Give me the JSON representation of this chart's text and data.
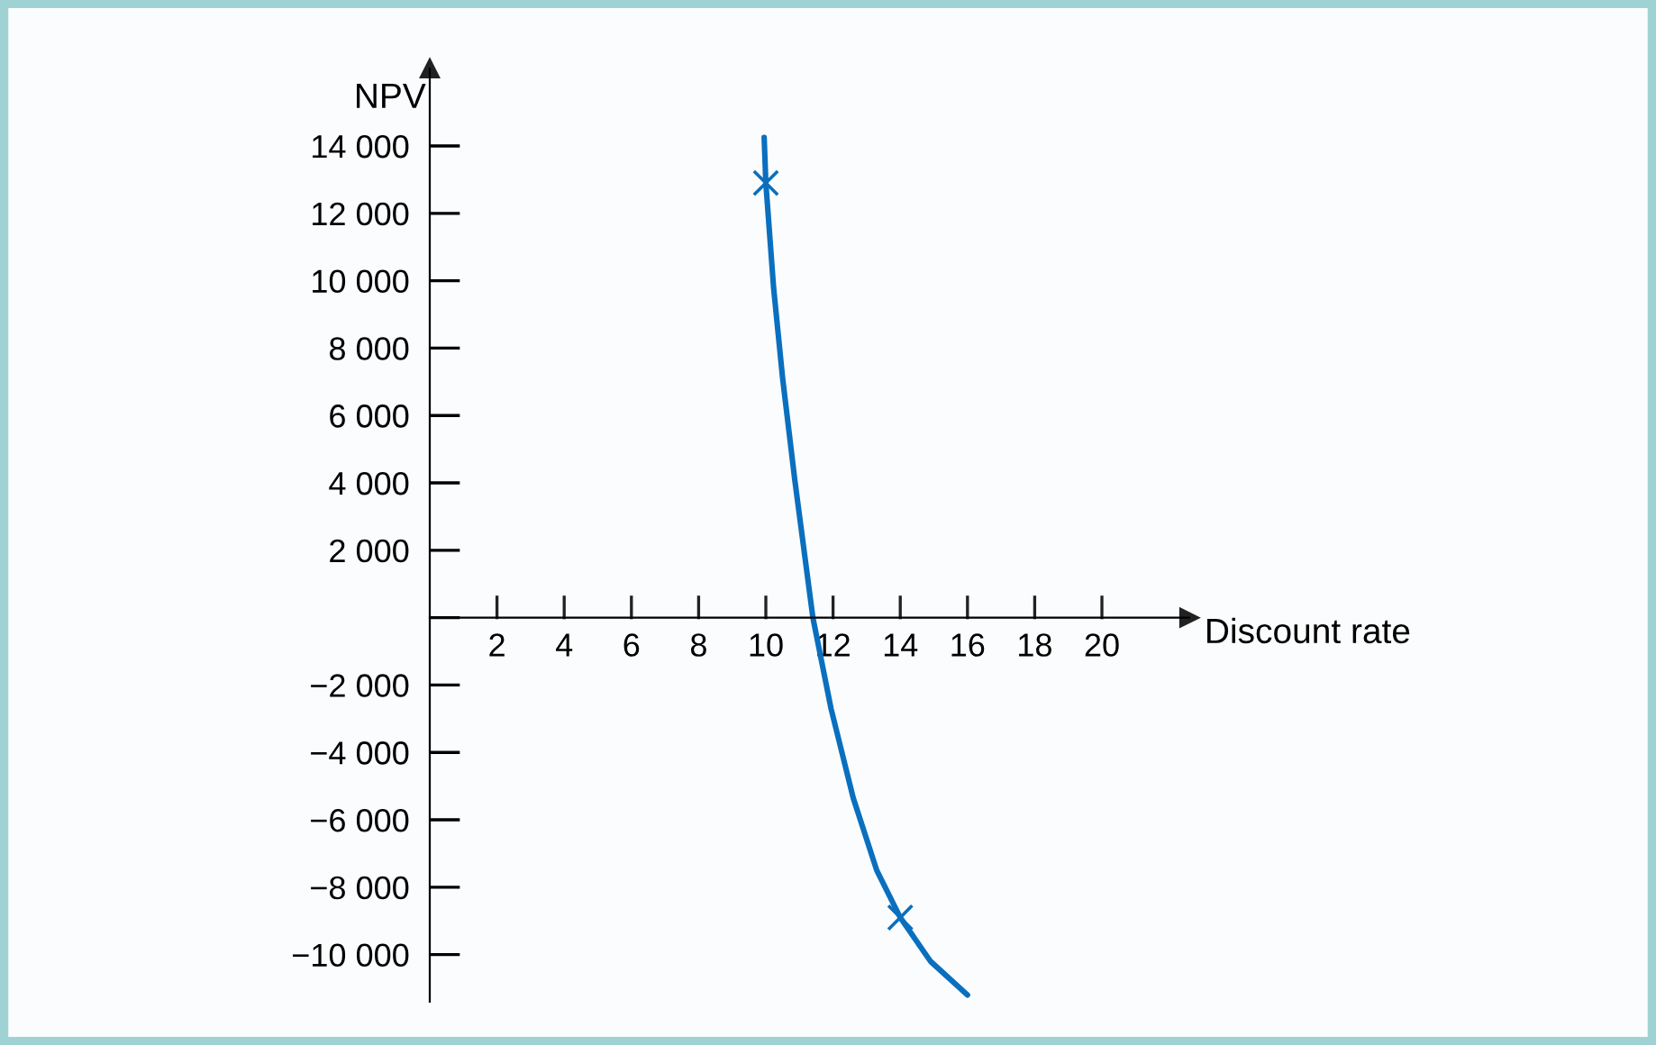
{
  "chart_data": {
    "type": "line",
    "xlabel": "Discount rate",
    "ylabel": "NPV",
    "xlim": [
      0,
      22.6
    ],
    "ylim": [
      -11400,
      16300
    ],
    "xticks": [
      2,
      4,
      6,
      8,
      10,
      12,
      14,
      16,
      18,
      20
    ],
    "yticks": [
      {
        "value": -10000,
        "label": "−10 000"
      },
      {
        "value": -8000,
        "label": "−8 000"
      },
      {
        "value": -6000,
        "label": "−6 000"
      },
      {
        "value": -4000,
        "label": "−4 000"
      },
      {
        "value": -2000,
        "label": "−2 000"
      },
      {
        "value": 0,
        "label": null
      },
      {
        "value": 2000,
        "label": "2 000"
      },
      {
        "value": 4000,
        "label": "4 000"
      },
      {
        "value": 6000,
        "label": "6 000"
      },
      {
        "value": 8000,
        "label": "8 000"
      },
      {
        "value": 10000,
        "label": "10 000"
      },
      {
        "value": 12000,
        "label": "12 000"
      },
      {
        "value": 14000,
        "label": "14 000"
      }
    ],
    "grid": false,
    "legend": false,
    "series": [
      {
        "color": "#0a6fbe",
        "marker": "none",
        "x": [
          9.95,
          10.0,
          10.23,
          10.5,
          10.86,
          11.4,
          11.94,
          12.6,
          13.3,
          14.0,
          14.9,
          16.0
        ],
        "values": [
          14250,
          12900,
          9800,
          7100,
          4100,
          0,
          -2700,
          -5350,
          -7500,
          -8900,
          -10200,
          -11200
        ]
      },
      {
        "type": "scatter",
        "color": "#0a6fbe",
        "marker": "cross",
        "x": [
          10.0,
          14.0
        ],
        "values": [
          12900,
          -8900
        ]
      }
    ]
  }
}
